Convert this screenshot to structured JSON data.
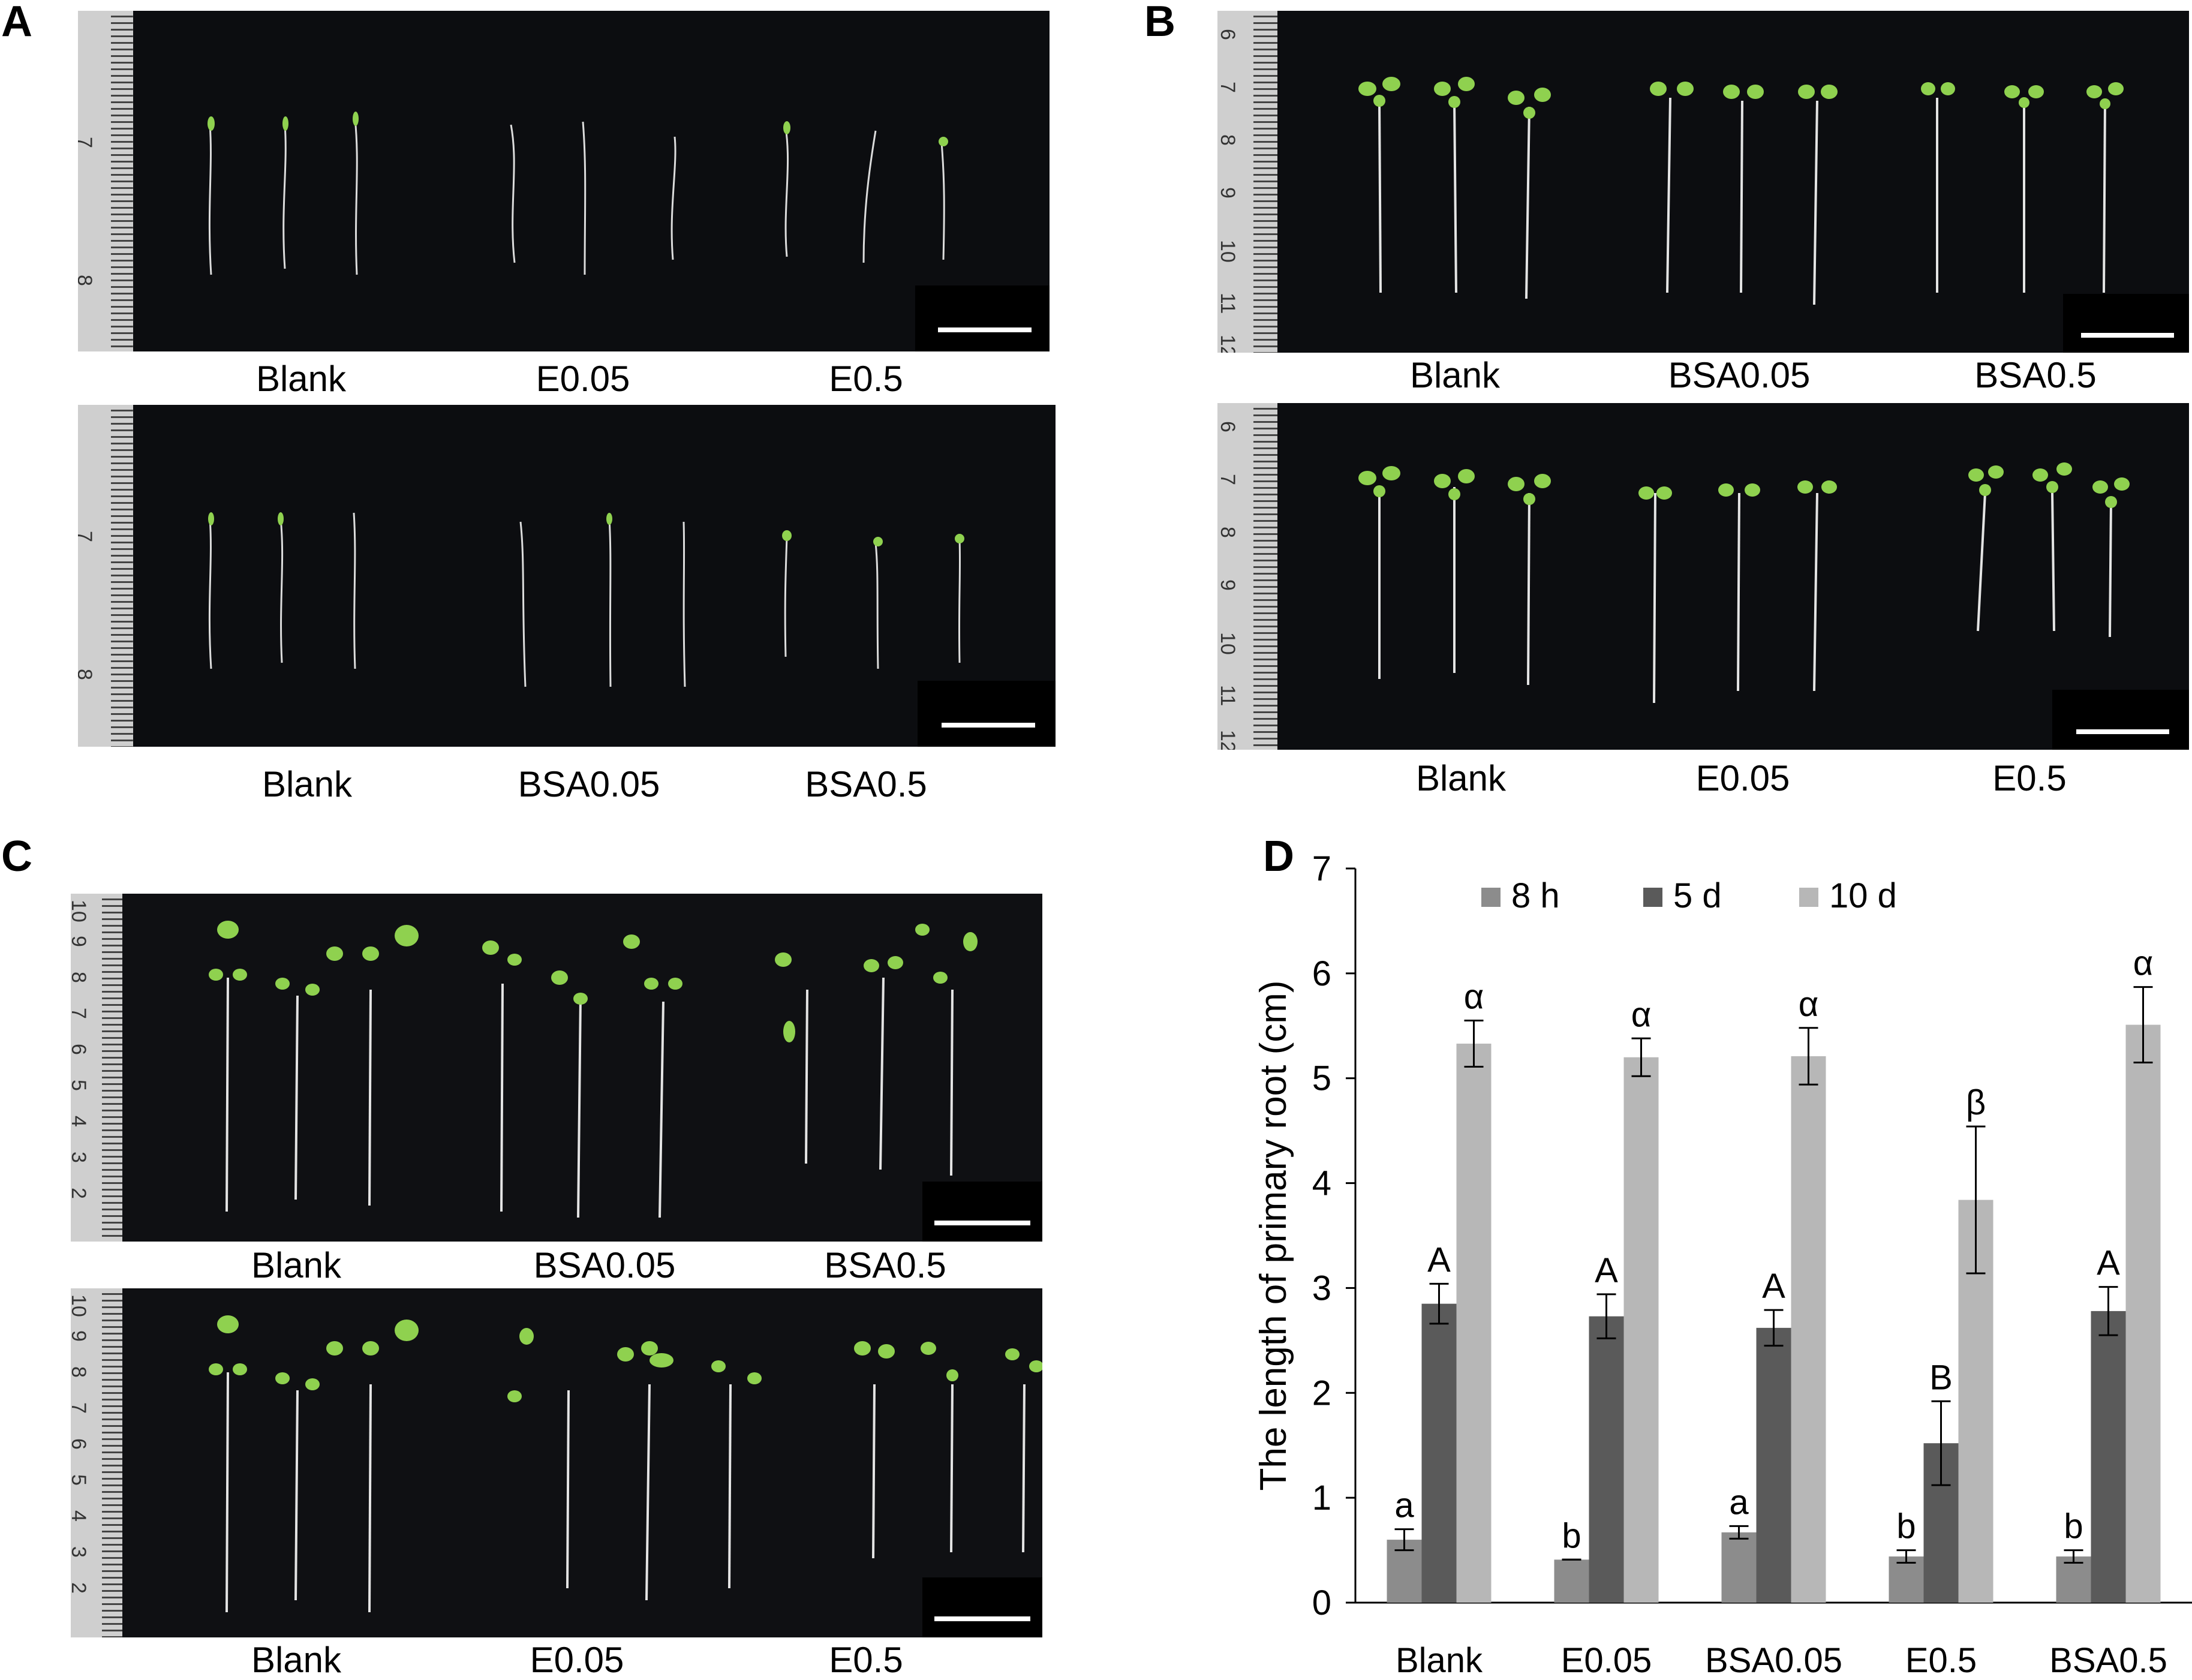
{
  "panels": {
    "A": {
      "letter": "A",
      "top_labels": [
        "Blank",
        "E0.05",
        "E0.5"
      ],
      "bottom_labels": [
        "Blank",
        "BSA0.05",
        "BSA0.5"
      ],
      "ruler_marks": [
        "7",
        "8"
      ]
    },
    "B": {
      "letter": "B",
      "top_labels": [
        "Blank",
        "BSA0.05",
        "BSA0.5"
      ],
      "bottom_labels": [
        "Blank",
        "E0.05",
        "E0.5"
      ],
      "ruler_marks": [
        "6",
        "7",
        "8",
        "9",
        "10",
        "11",
        "12"
      ]
    },
    "C": {
      "letter": "C",
      "top_labels": [
        "Blank",
        "BSA0.05",
        "BSA0.5"
      ],
      "bottom_labels": [
        "Blank",
        "E0.05",
        "E0.5"
      ],
      "ruler_marks": [
        "10",
        "9",
        "8",
        "7",
        "6",
        "5",
        "4",
        "3",
        "2"
      ]
    },
    "D": {
      "letter": "D"
    }
  },
  "colors": {
    "photo_bg": "#0c0d10",
    "leaf_green": "#8fd14f",
    "root_white": "#e8e8e8",
    "bar_8h": "#8c8c8c",
    "bar_5d": "#5a5a5a",
    "bar_10d": "#b7b7b7"
  },
  "chart_data": {
    "type": "bar",
    "ylabel": "The length of primary root (cm)",
    "xlabel": "",
    "ylim": [
      0,
      7
    ],
    "yticks": [
      "0",
      "1",
      "2",
      "3",
      "4",
      "5",
      "6",
      "7"
    ],
    "legend_position": "top",
    "categories": [
      "Blank",
      "E0.05",
      "BSA0.05",
      "E0.5",
      "BSA0.5"
    ],
    "series": [
      {
        "name": "8 h",
        "values": [
          0.6,
          0.41,
          0.67,
          0.44,
          0.44
        ],
        "errors": [
          0.1,
          0.0,
          0.06,
          0.06,
          0.06
        ],
        "letters": [
          "a",
          "b",
          "a",
          "b",
          "b"
        ]
      },
      {
        "name": "5 d",
        "values": [
          2.85,
          2.73,
          2.62,
          1.52,
          2.78
        ],
        "errors": [
          0.19,
          0.21,
          0.17,
          0.4,
          0.23
        ],
        "letters": [
          "A",
          "A",
          "A",
          "B",
          "A"
        ]
      },
      {
        "name": "10 d",
        "values": [
          5.33,
          5.2,
          5.21,
          3.84,
          5.51
        ],
        "errors": [
          0.22,
          0.18,
          0.27,
          0.7,
          0.36
        ],
        "letters": [
          "α",
          "α",
          "α",
          "β",
          "α"
        ]
      }
    ]
  }
}
